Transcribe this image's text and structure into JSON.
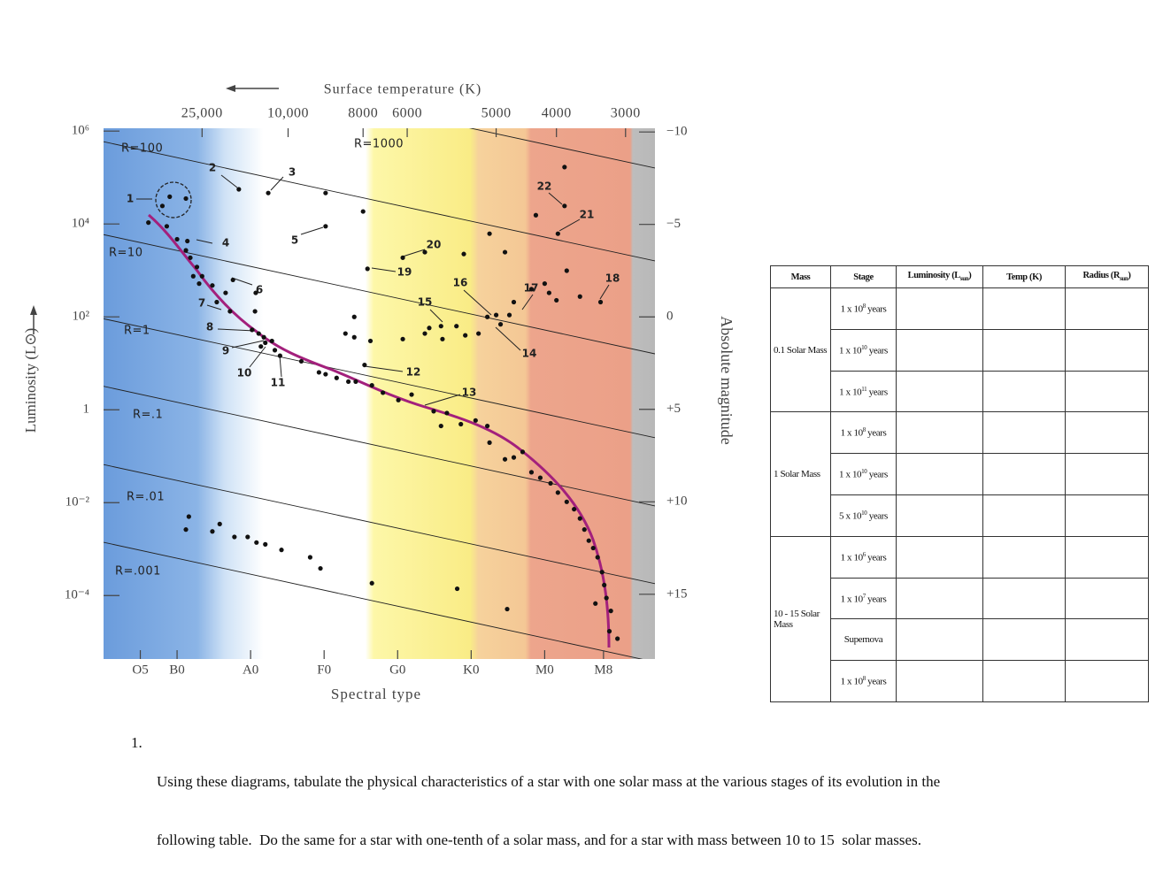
{
  "chart_data": {
    "type": "scatter",
    "top_axis_label": "Surface temperature (K)",
    "xlabel": "Spectral type",
    "ylabel": "Luminosity (L⊙)",
    "y2label": "Absolute magnitude",
    "xlim": [
      0,
      75
    ],
    "xticks": [
      {
        "value": 5,
        "label": "O5"
      },
      {
        "value": 10,
        "label": "B0"
      },
      {
        "value": 20,
        "label": "A0"
      },
      {
        "value": 30,
        "label": "F0"
      },
      {
        "value": 40,
        "label": "G0"
      },
      {
        "value": 50,
        "label": "K0"
      },
      {
        "value": 60,
        "label": "M0"
      },
      {
        "value": 68,
        "label": "M8"
      }
    ],
    "temperature_ticks": [
      {
        "value": 25000,
        "label": "25,000",
        "spectral": 13.4
      },
      {
        "value": 10000,
        "label": "10,000",
        "spectral": 25.1
      },
      {
        "value": 8000,
        "label": "8000",
        "spectral": 35.3
      },
      {
        "value": 6000,
        "label": "6000",
        "spectral": 41.3
      },
      {
        "value": 5000,
        "label": "5000",
        "spectral": 53.4
      },
      {
        "value": 4000,
        "label": "4000",
        "spectral": 61.6
      },
      {
        "value": 3000,
        "label": "3000",
        "spectral": 71.0
      }
    ],
    "ylim": [
      4.3e-06,
      1150000
    ],
    "ylog": true,
    "yticks": [
      {
        "value": 1000000,
        "label": "10⁶"
      },
      {
        "value": 10000,
        "label": "10⁴"
      },
      {
        "value": 100,
        "label": "10²"
      },
      1,
      {
        "value": 0.01,
        "label": "10⁻²"
      },
      {
        "value": 0.0001,
        "label": "10⁻⁴"
      }
    ],
    "y2lim": [
      18.5,
      -10.2
    ],
    "y2ticks": [
      {
        "value": -10,
        "label": "−10"
      },
      {
        "value": -5,
        "label": "−5"
      },
      0,
      {
        "value": 5,
        "label": "+5"
      },
      {
        "value": 10,
        "label": "+10"
      },
      {
        "value": 15,
        "label": "+15"
      }
    ],
    "radius_lines": [
      {
        "label": "R=1000",
        "values": [
          59000000,
          160000
        ]
      },
      {
        "label": "R=100",
        "values": [
          590000,
          1600
        ]
      },
      {
        "label": "R=10",
        "values": [
          5900,
          16
        ]
      },
      {
        "label": "R=1",
        "values": [
          91,
          0.25
        ]
      },
      {
        "label": "R=.1",
        "values": [
          3.2,
          0.0085
        ]
      },
      {
        "label": "R=.01",
        "values": [
          0.066,
          0.00018
        ]
      },
      {
        "label": "R=.001",
        "values": [
          0.0014,
          3.7e-06
        ]
      }
    ],
    "star_labels": [
      "1",
      "2",
      "3",
      "4",
      "5",
      "6",
      "7",
      "8",
      "9",
      "10",
      "11",
      "12",
      "13",
      "14",
      "15",
      "16",
      "17",
      "18",
      "19",
      "20",
      "21",
      "22"
    ],
    "series": [
      {
        "axis": "y2",
        "color": "#111111",
        "x": [
          9.0,
          8.0,
          11.2,
          6.1,
          8.6,
          10.0,
          11.4,
          11.2,
          11.8,
          12.7,
          13.4,
          12.2,
          13.0,
          14.8,
          16.6,
          15.4,
          17.2,
          17.6,
          18.4,
          22.4,
          20.7,
          20.6,
          20.2,
          21.1,
          21.8,
          22.0,
          22.9,
          21.4,
          23.3,
          24.0,
          26.9,
          29.3,
          30.2,
          31.7,
          33.3,
          34.3,
          36.5,
          38.0,
          40.1,
          41.9,
          44.9,
          46.7,
          45.9,
          48.6,
          50.6,
          52.2,
          52.5,
          54.6,
          55.8,
          57.0,
          58.2,
          59.4,
          60.8,
          61.8,
          63.0,
          64.0,
          64.8,
          65.4,
          66.0,
          66.6,
          67.2,
          67.8,
          68.1,
          68.4,
          69.0,
          68.8,
          69.9,
          66.9,
          30.2,
          35.3,
          30.2,
          35.9,
          40.7,
          43.7,
          49.0,
          52.5,
          54.6,
          58.8,
          61.8,
          62.7,
          62.7,
          34.1,
          32.9,
          34.1,
          36.3,
          35.5,
          40.7,
          43.7,
          44.3,
          45.9,
          46.1,
          48.0,
          49.2,
          51.0,
          52.2,
          53.4,
          54.0,
          55.2,
          55.8,
          58.2,
          60.0,
          60.6,
          61.6,
          63.0,
          64.8,
          67.6,
          11.6,
          11.2,
          14.8,
          15.8,
          17.8,
          19.6,
          20.8,
          22.0,
          24.2,
          28.1,
          29.5,
          36.5,
          48.1,
          54.9
        ],
        "values": [
          -6.5,
          -6.0,
          -6.4,
          -5.1,
          -4.9,
          -4.2,
          -4.1,
          -3.6,
          -3.2,
          -2.7,
          -2.2,
          -2.2,
          -1.8,
          -1.7,
          -1.3,
          -0.8,
          -0.3,
          -2.0,
          -6.9,
          -6.7,
          -1.3,
          -0.3,
          0.7,
          0.9,
          1.1,
          1.4,
          1.3,
          1.6,
          1.8,
          2.1,
          2.4,
          3.0,
          3.1,
          3.3,
          3.5,
          3.5,
          3.7,
          4.1,
          4.5,
          4.2,
          5.1,
          5.2,
          5.9,
          5.8,
          5.6,
          5.9,
          6.8,
          7.7,
          7.6,
          7.3,
          8.4,
          8.7,
          9.0,
          9.5,
          10.0,
          10.4,
          10.9,
          11.5,
          12.1,
          12.5,
          13.0,
          13.8,
          14.5,
          15.2,
          15.9,
          17.0,
          17.4,
          15.5,
          -6.7,
          -5.7,
          -4.9,
          -2.6,
          -3.2,
          -3.5,
          -3.4,
          -4.5,
          -3.5,
          -5.5,
          -4.5,
          -8.1,
          -6.0,
          0,
          0.9,
          1.1,
          1.3,
          2.6,
          1.2,
          0.9,
          0.6,
          0.5,
          1.2,
          0.5,
          1.0,
          0.9,
          0,
          -0.1,
          0.4,
          -0.1,
          -0.8,
          -1.5,
          -1.8,
          -1.3,
          -0.9,
          -2.5,
          -1.1,
          -0.8,
          10.8,
          11.5,
          11.6,
          11.2,
          11.9,
          11.9,
          12.2,
          12.3,
          12.6,
          13.0,
          13.6,
          14.4,
          14.7,
          15.8
        ]
      }
    ]
  },
  "table": {
    "header": [
      "Mass",
      "Stage",
      {
        "text": "Luminosity (L",
        "sub": "sun",
        "close": ")"
      },
      "Temp (K)",
      {
        "text": "Radius (R",
        "sub": "sun",
        "close": ")"
      }
    ],
    "groups": [
      {
        "mass": "0.1 Solar Mass",
        "stages": [
          {
            "base": "1 x 10",
            "exp": "8",
            "unit": "years"
          },
          {
            "base": "1 x 10",
            "exp": "10",
            "unit": "years"
          },
          {
            "base": "1 x 10",
            "exp": "11",
            "unit": "years"
          }
        ]
      },
      {
        "mass": "1 Solar Mass",
        "stages": [
          {
            "base": "1 x 10",
            "exp": "8",
            "unit": "years"
          },
          {
            "base": "1 x 10",
            "exp": "10",
            "unit": "years"
          },
          {
            "base": "5 x 10",
            "exp": "10",
            "unit": "years"
          }
        ]
      },
      {
        "mass": "10 - 15 Solar Mass",
        "stages": [
          {
            "base": "1 x 10",
            "exp": "6",
            "unit": "years"
          },
          {
            "base": "1 x 10",
            "exp": "7",
            "unit": "years"
          },
          {
            "text": "Supernova"
          },
          {
            "base": "1 x 10",
            "exp": "8",
            "unit": "years"
          }
        ]
      }
    ]
  },
  "question": {
    "number": "1.",
    "lines": [
      "Using these diagrams, tabulate the physical characteristics of a star with one solar mass at the various stages of its evolution in the",
      "following table.  Do the same for a star with one-tenth of a solar mass, and for a star with mass between 10 to 15  solar masses."
    ]
  }
}
